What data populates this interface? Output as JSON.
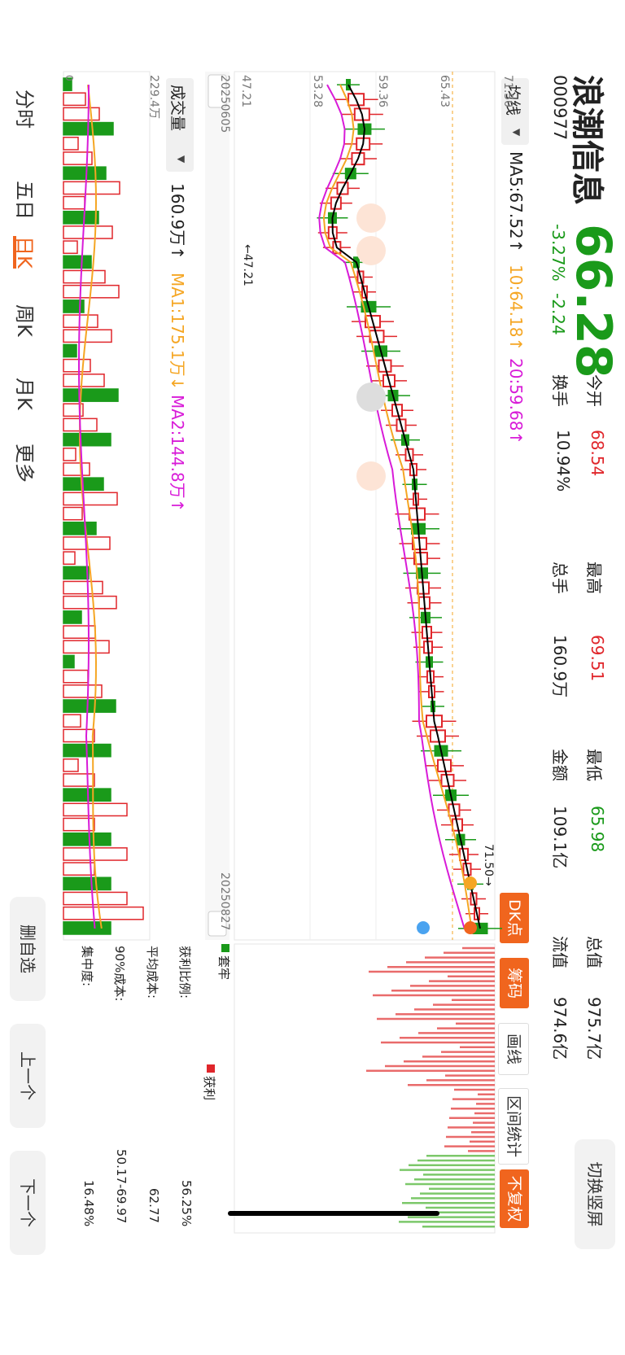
{
  "header": {
    "name": "浪潮信息",
    "code": "000977",
    "price": "66.28",
    "change": "-3.27%",
    "change_abs": "-2.24",
    "stats": [
      {
        "label": "今开",
        "value": "68.54",
        "color": "#e0262b"
      },
      {
        "label": "换手",
        "value": "10.94%",
        "color": "#222"
      },
      {
        "label": "最高",
        "value": "69.51",
        "color": "#e0262b"
      },
      {
        "label": "总手",
        "value": "160.9万",
        "color": "#222"
      },
      {
        "label": "最低",
        "value": "65.98",
        "color": "#1a9a1a"
      },
      {
        "label": "金额",
        "value": "109.1亿",
        "color": "#222"
      },
      {
        "label": "总值",
        "value": "975.7亿",
        "color": "#222"
      },
      {
        "label": "流值",
        "value": "974.6亿",
        "color": "#222"
      }
    ],
    "switch_label": "切换竖屏"
  },
  "ma_bar": {
    "selector": "均线",
    "ma5": "MA5:67.52↑",
    "ma10": "10:64.18↑",
    "ma20": "20:59.68↑"
  },
  "tabs": {
    "dk": "DK点",
    "chips": "筹码",
    "draw": "画线",
    "interval": "区间统计",
    "no_adjust": "不复权"
  },
  "axis": {
    "price_ticks": [
      "71.50",
      "65.43",
      "59.36",
      "53.28",
      "47.21"
    ],
    "date_start": "20250605",
    "date_end": "20250827",
    "max_label": "71.50→",
    "min_label": "←47.21"
  },
  "volume": {
    "selector": "成交量",
    "value": "160.9万↑",
    "ma1": "MA1:175.1万↓",
    "ma2": "MA2:144.8万↑",
    "max_tick": "229.4万",
    "zero": "0"
  },
  "chips_panel": {
    "legend_trap": "套牢",
    "legend_profit": "获利",
    "rows": [
      {
        "label": "获利比例:",
        "value": "56.25%"
      },
      {
        "label": "平均成本:",
        "value": "62.77"
      },
      {
        "label": "90%成本:",
        "value": "50.17-69.97"
      },
      {
        "label": "集中度:",
        "value": "16.48%"
      }
    ]
  },
  "side_buttons": {
    "delete": "删自选",
    "prev": "上一个",
    "next": "下一个"
  },
  "bottom_tabs": [
    "分时",
    "五日",
    "日K",
    "周K",
    "月K",
    "更多"
  ],
  "colors": {
    "up": "#e0262b",
    "down": "#1a9a1a",
    "accent": "#f0651e",
    "ma5": "#000000",
    "ma10": "#f5a623",
    "ma20": "#d81bd8"
  }
}
